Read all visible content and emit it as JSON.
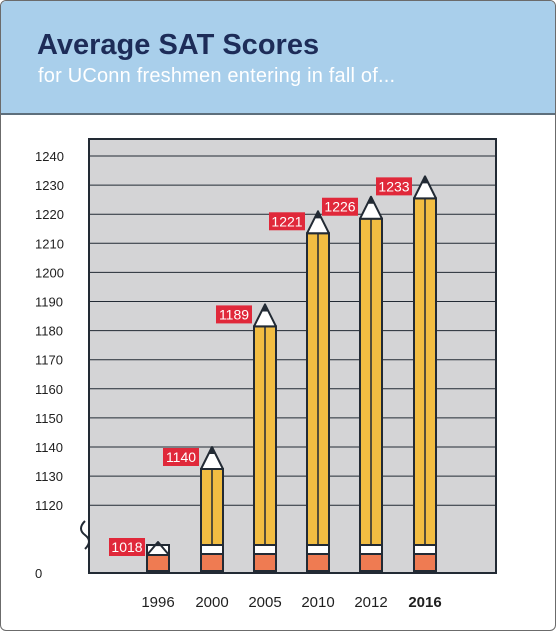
{
  "header": {
    "title": "Average SAT Scores",
    "subtitle": "for UConn freshmen entering in fall of..."
  },
  "colors": {
    "header_bg": "#a9cfeb",
    "title": "#1d2c58",
    "plot_bg": "#d4d4d6",
    "pencil_body": "#f2bd42",
    "pencil_eraser": "#ef7b52",
    "label_bg": "#e0283a",
    "outline": "#222a34"
  },
  "chart_data": {
    "type": "bar",
    "style": "pencil",
    "categories": [
      "1996",
      "2000",
      "2005",
      "2010",
      "2012",
      "2016"
    ],
    "bold_category": "2016",
    "values": [
      1018,
      1140,
      1189,
      1221,
      1226,
      1233
    ],
    "data_labels": [
      "1018",
      "1140",
      "1189",
      "1221",
      "1226",
      "1233"
    ],
    "y_axis": {
      "ticks": [
        "0",
        "1120",
        "1130",
        "1140",
        "1150",
        "1160",
        "1170",
        "1180",
        "1190",
        "1200",
        "1210",
        "1220",
        "1230",
        "1240"
      ],
      "broken": true,
      "break_between": [
        0,
        1120
      ],
      "range": [
        1110,
        1240
      ]
    },
    "grid": true
  }
}
